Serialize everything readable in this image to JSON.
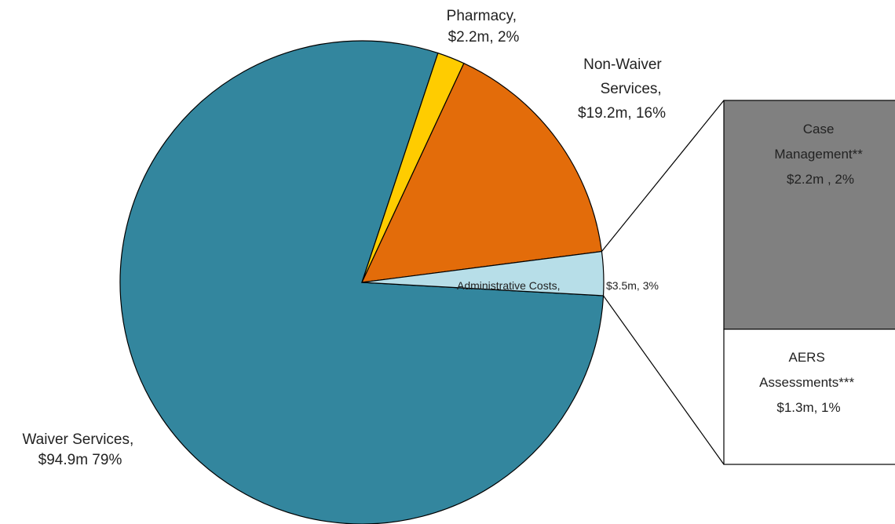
{
  "chart_data": {
    "type": "pie",
    "subtype": "pie-of-bar",
    "slices": [
      {
        "name": "Waiver Services",
        "value": 94.9,
        "percent": 79,
        "value_label": "$94.9m",
        "percent_label": "79%",
        "label_lines": [
          "Waiver Services,",
          "$94.9m  79%"
        ],
        "color": "#33869E"
      },
      {
        "name": "Pharmacy",
        "value": 2.2,
        "percent": 2,
        "value_label": "$2.2m",
        "percent_label": "2%",
        "label_lines": [
          "Pharmacy,",
          "$2.2m, 2%"
        ],
        "color": "#FFCC00"
      },
      {
        "name": "Non-Waiver Services",
        "value": 19.2,
        "percent": 16,
        "value_label": "$19.2m",
        "percent_label": "16%",
        "label_lines": [
          "Non-Waiver",
          "Services,",
          "$19.2m, 16%"
        ],
        "color": "#E36C0A"
      },
      {
        "name": "Administrative Costs",
        "value": 3.5,
        "percent": 3,
        "value_label": "$3.5m",
        "percent_label": "3%",
        "label_lines": [
          "Administrative Costs,",
          "$3.5m, 3%"
        ],
        "color": "#B7DEE8"
      }
    ],
    "breakout": {
      "of": "Administrative Costs",
      "segments": [
        {
          "name": "Case Management**",
          "value": 2.2,
          "percent": 2,
          "label_lines": [
            "Case",
            "Management**",
            "$2.2m , 2%"
          ],
          "color": "#808080"
        },
        {
          "name": "AERS Assessments***",
          "value": 1.3,
          "percent": 1,
          "label_lines": [
            "AERS",
            "Assessments***",
            "$1.3m, 1%"
          ],
          "color": "#FFFFFF"
        }
      ]
    },
    "legend": "none"
  }
}
